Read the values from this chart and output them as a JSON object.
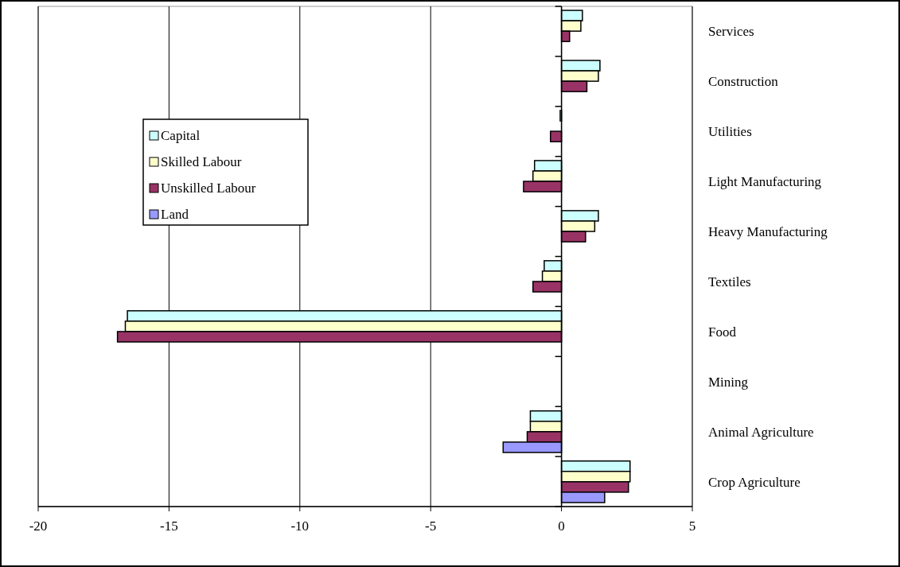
{
  "chart_data": {
    "type": "bar",
    "orientation": "horizontal",
    "categories": [
      "Services",
      "Construction",
      "Utilities",
      "Light Manufacturing",
      "Heavy Manufacturing",
      "Textiles",
      "Food",
      "Mining",
      "Animal Agriculture",
      "Crop Agriculture"
    ],
    "series": [
      {
        "name": "Capital",
        "color": "#ccffff",
        "values": [
          0.8,
          1.47,
          -0.05,
          -1.03,
          1.41,
          -0.66,
          -16.59,
          0,
          -1.19,
          2.62
        ]
      },
      {
        "name": "Skilled Labour",
        "color": "#ffffcc",
        "values": [
          0.74,
          1.41,
          0,
          -1.09,
          1.27,
          -0.73,
          -16.67,
          0,
          -1.19,
          2.62
        ]
      },
      {
        "name": "Unskilled Labour",
        "color": "#993366",
        "values": [
          0.31,
          0.97,
          -0.42,
          -1.45,
          0.92,
          -1.09,
          -16.97,
          0,
          -1.31,
          2.56
        ]
      },
      {
        "name": "Land",
        "color": "#9999ff",
        "values": [
          null,
          null,
          null,
          null,
          null,
          null,
          null,
          null,
          -2.23,
          1.65
        ]
      }
    ],
    "xlim": [
      -20,
      5
    ],
    "xticks": [
      -20,
      -15,
      -10,
      -5,
      0,
      5
    ],
    "grid": "x",
    "legend": "top left"
  }
}
